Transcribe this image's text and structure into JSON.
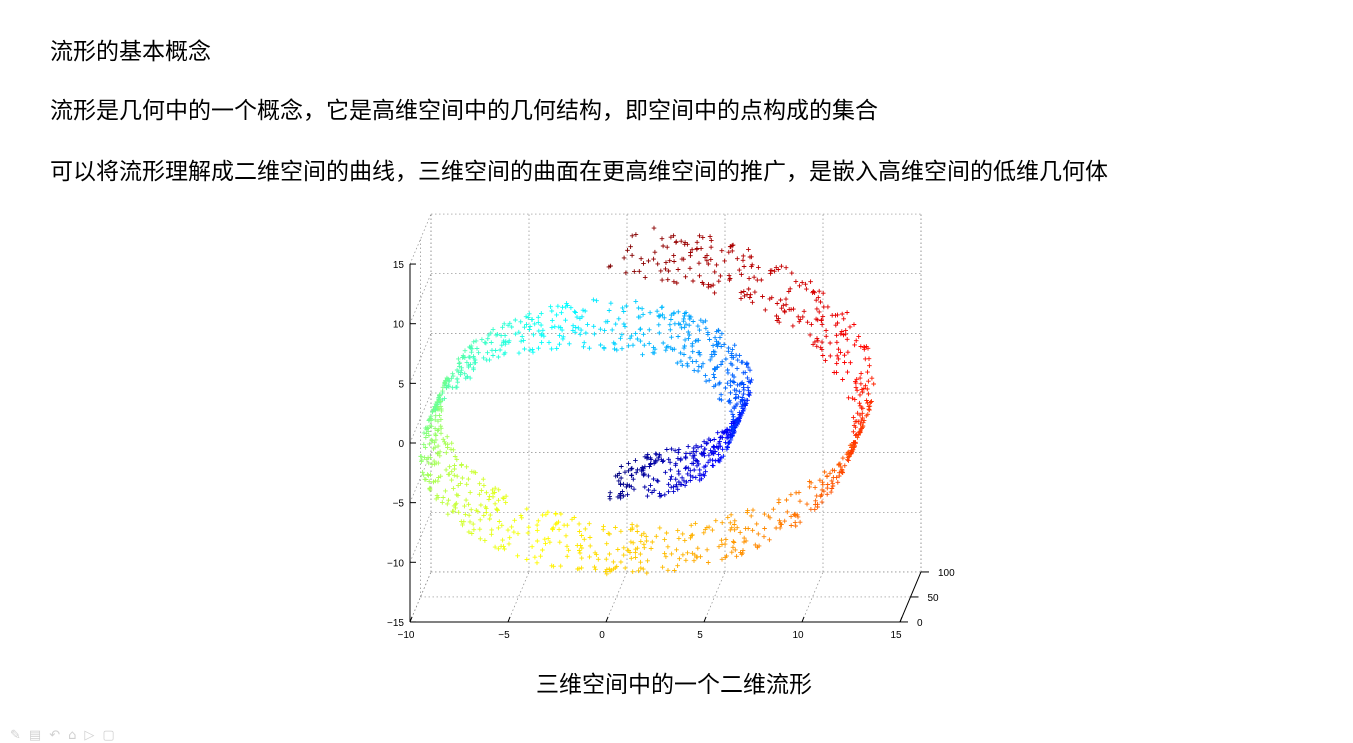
{
  "slide": {
    "heading": "流形的基本概念",
    "paragraph1": "流形是几何中的一个概念，它是高维空间中的几何结构，即空间中的点构成的集合",
    "paragraph2": "可以将流形理解成二维空间的曲线，三维空间的曲面在更高维空间的推广，是嵌入高维空间的低维几何体",
    "caption": "三维空间中的一个二维流形"
  },
  "chart_data": {
    "type": "scatter",
    "subtype": "3d-swiss-roll",
    "marker": "+",
    "colormap": "jet",
    "grid": true,
    "x_ticks": [
      "−10",
      "−5",
      "0",
      "5",
      "10",
      "15"
    ],
    "y_ticks": [
      "0",
      "50",
      "100"
    ],
    "z_ticks": [
      "−15",
      "−10",
      "−5",
      "0",
      "5",
      "10",
      "15"
    ],
    "xlim": [
      -10,
      15
    ],
    "ylim": [
      0,
      100
    ],
    "zlim": [
      -15,
      15
    ],
    "t_range": [
      4.71,
      14.14
    ],
    "radius_equals_t": true,
    "points_approx": 1600
  },
  "toolbar": {
    "icons": [
      "pen-icon",
      "slide-icon",
      "undo-icon",
      "home-icon",
      "arrow-icon",
      "window-icon"
    ]
  }
}
